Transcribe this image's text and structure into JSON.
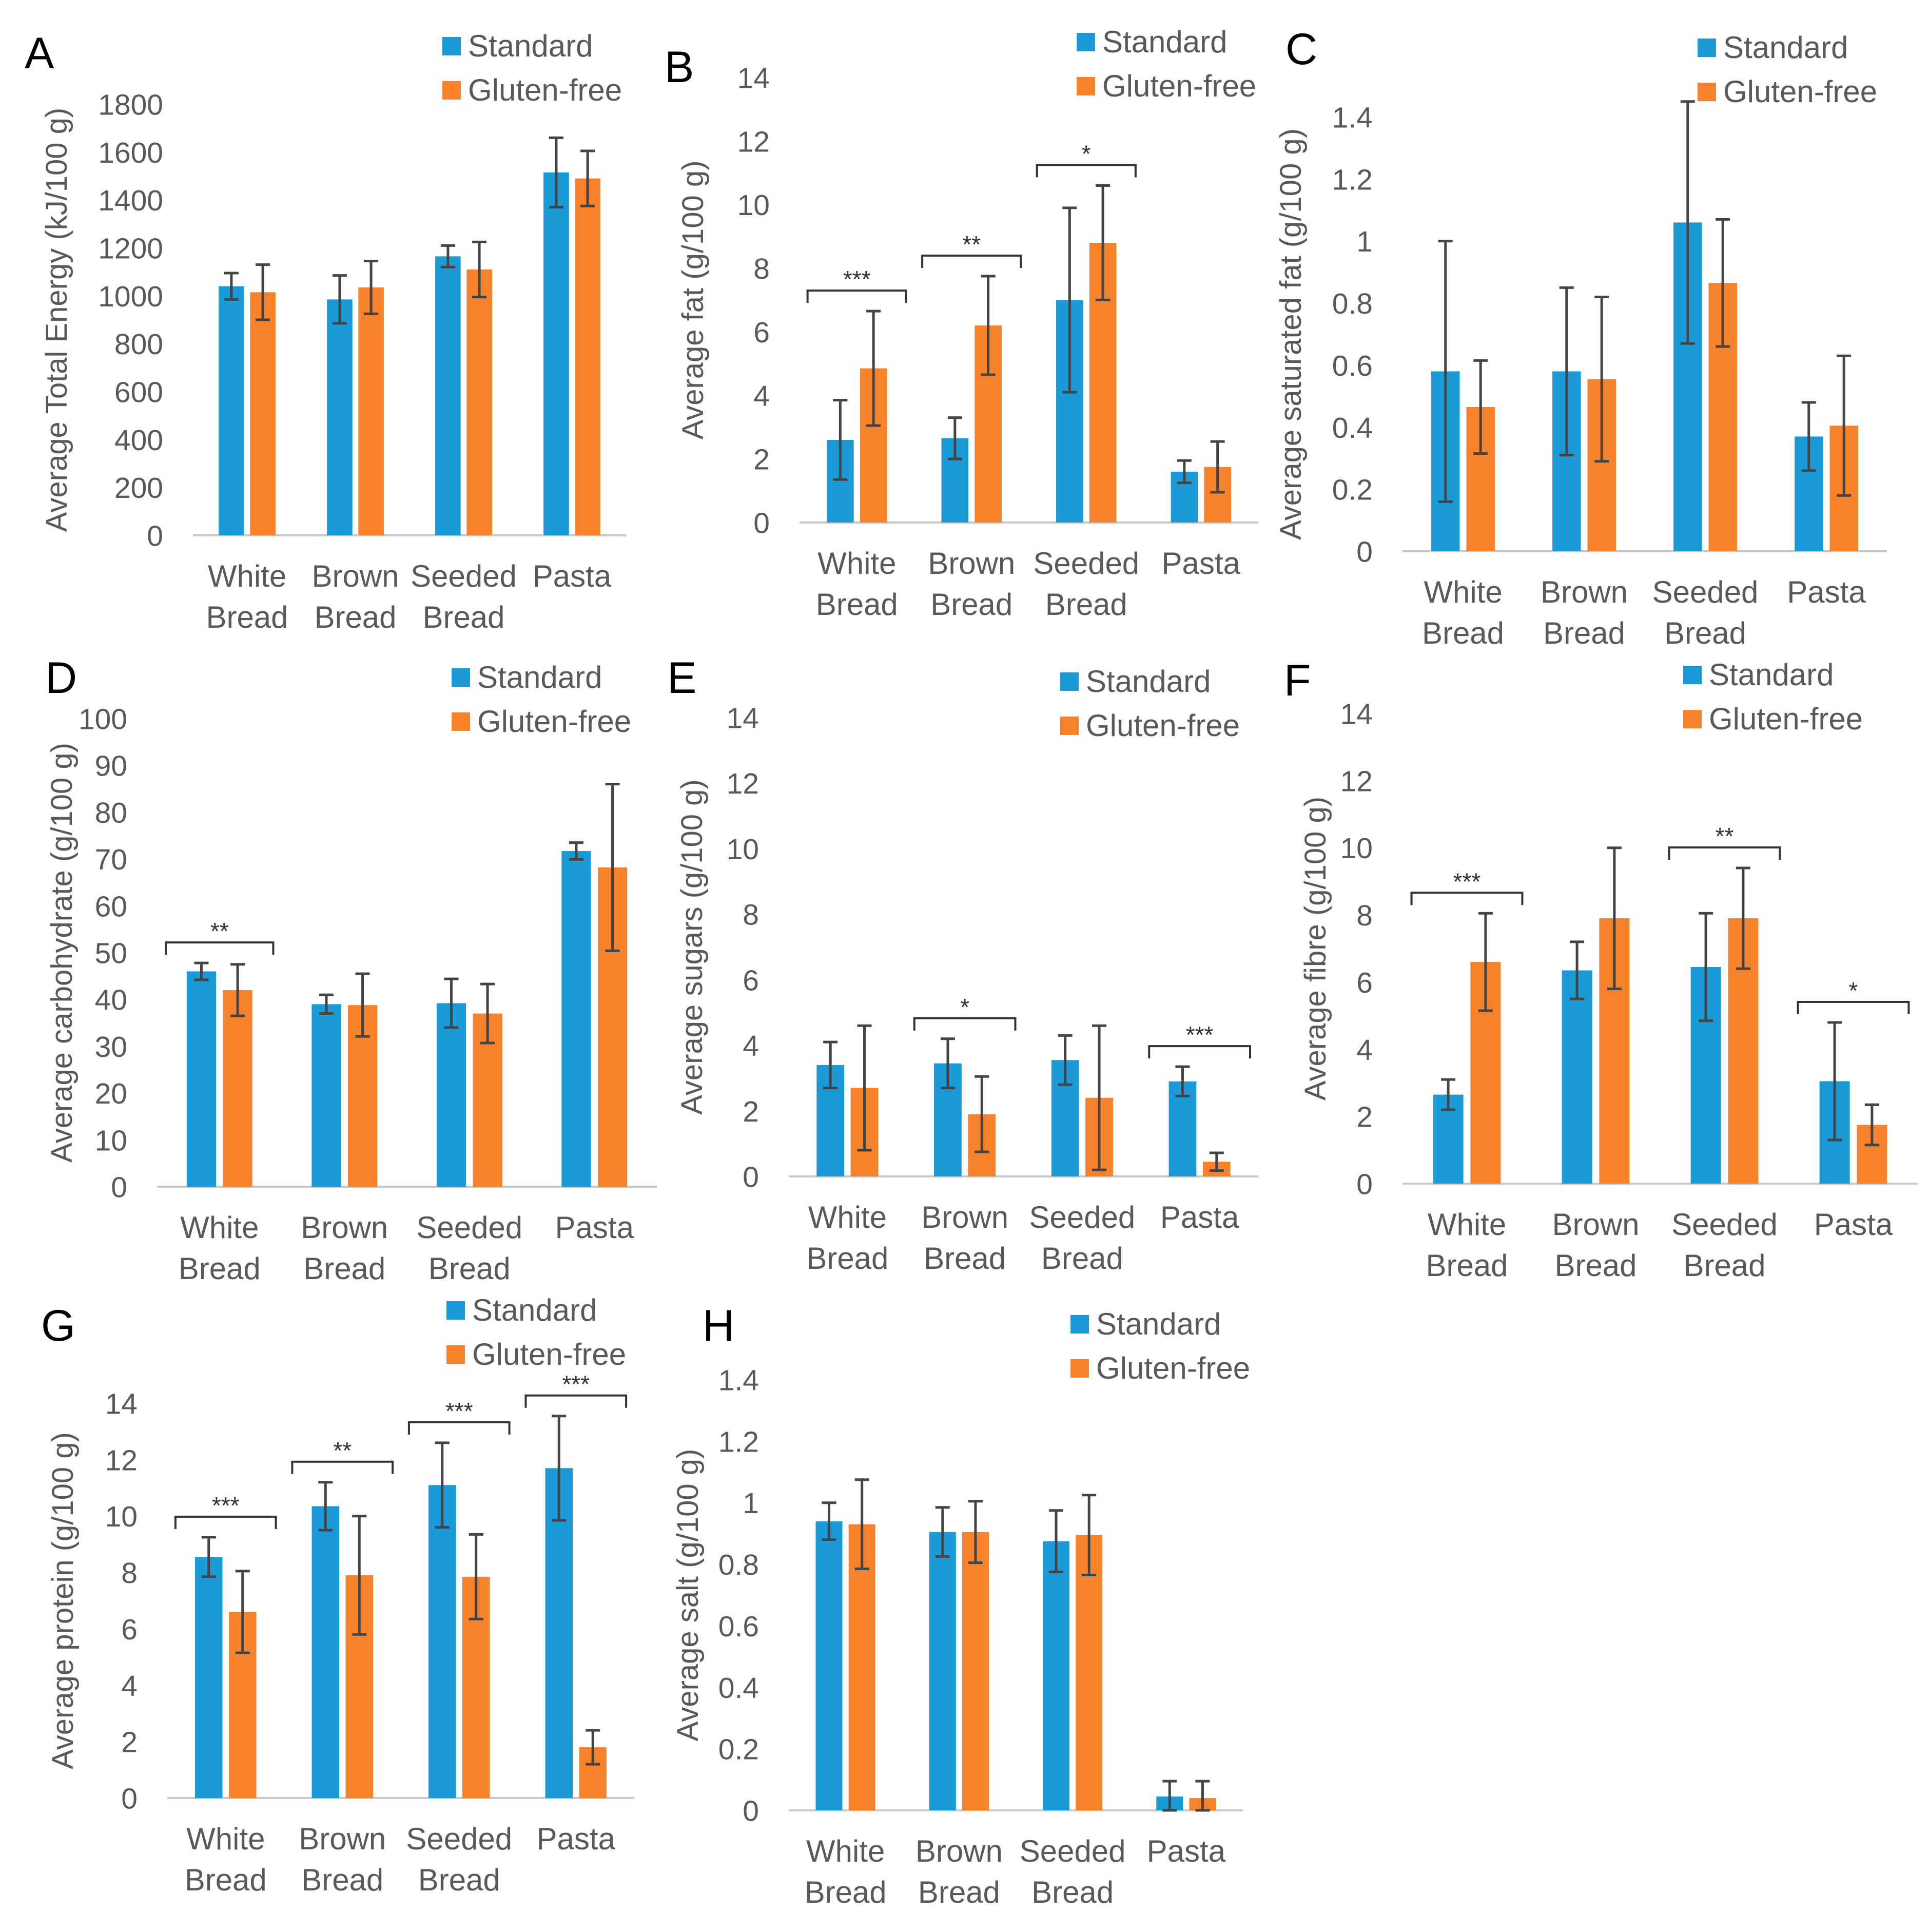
{
  "figure": {
    "colors": {
      "standard": "#1A9AD7",
      "gluten_free": "#F7822C",
      "axis": "#C8C8C8",
      "error": "#444444",
      "text": "#595959",
      "panel_label": "#000000"
    },
    "legend": [
      "Standard",
      "Gluten-free"
    ]
  },
  "chart_data": [
    {
      "panel": "A",
      "type": "bar",
      "title": "",
      "categories": [
        [
          "White",
          "Bread"
        ],
        [
          "Brown",
          "Bread"
        ],
        [
          "Seeded",
          "Bread"
        ],
        [
          "Pasta"
        ]
      ],
      "ylabel": "Average Total Energy (kJ/100 g)",
      "ylim": [
        0,
        1800
      ],
      "ytick_step": 200,
      "ytick_labels": [
        "0",
        "200",
        "400",
        "600",
        "800",
        "1000",
        "1200",
        "1400",
        "1600",
        "1800"
      ],
      "series": [
        {
          "name": "Standard",
          "values": [
            1040,
            985,
            1165,
            1515
          ],
          "errors": [
            55,
            100,
            45,
            145
          ]
        },
        {
          "name": "Gluten-free",
          "values": [
            1015,
            1035,
            1110,
            1490
          ],
          "errors": [
            115,
            110,
            115,
            115
          ]
        }
      ],
      "significance": []
    },
    {
      "panel": "B",
      "type": "bar",
      "title": "",
      "categories": [
        [
          "White",
          "Bread"
        ],
        [
          "Brown",
          "Bread"
        ],
        [
          "Seeded",
          "Bread"
        ],
        [
          "Pasta"
        ]
      ],
      "ylabel": "Average fat (g/100 g)",
      "ylim": [
        0,
        14
      ],
      "ytick_step": 2,
      "ytick_labels": [
        "0",
        "2",
        "4",
        "6",
        "8",
        "10",
        "12",
        "14"
      ],
      "series": [
        {
          "name": "Standard",
          "values": [
            2.6,
            2.65,
            7.0,
            1.6
          ],
          "errors": [
            1.25,
            0.65,
            2.9,
            0.35
          ]
        },
        {
          "name": "Gluten-free",
          "values": [
            4.85,
            6.2,
            8.8,
            1.75
          ],
          "errors": [
            1.8,
            1.55,
            1.8,
            0.8
          ]
        }
      ],
      "significance": [
        {
          "group": 0,
          "label": "***"
        },
        {
          "group": 1,
          "label": "**"
        },
        {
          "group": 2,
          "label": "*"
        }
      ]
    },
    {
      "panel": "C",
      "type": "bar",
      "title": "",
      "categories": [
        [
          "White",
          "Bread"
        ],
        [
          "Brown",
          "Bread"
        ],
        [
          "Seeded",
          "Bread"
        ],
        [
          "Pasta"
        ]
      ],
      "ylabel": "Average saturated fat (g/100 g)",
      "ylim": [
        0,
        1.4
      ],
      "ytick_step": 0.2,
      "ytick_labels": [
        "0",
        "0.2",
        "0.4",
        "0.6",
        "0.8",
        "1",
        "1.2",
        "1.4"
      ],
      "series": [
        {
          "name": "Standard",
          "values": [
            0.58,
            0.58,
            1.06,
            0.37
          ],
          "errors": [
            0.42,
            0.27,
            0.39,
            0.11
          ]
        },
        {
          "name": "Gluten-free",
          "values": [
            0.465,
            0.555,
            0.865,
            0.405
          ],
          "errors": [
            0.15,
            0.265,
            0.205,
            0.225
          ]
        }
      ],
      "significance": []
    },
    {
      "panel": "D",
      "type": "bar",
      "title": "",
      "categories": [
        [
          "White",
          "Bread"
        ],
        [
          "Brown",
          "Bread"
        ],
        [
          "Seeded",
          "Bread"
        ],
        [
          "Pasta"
        ]
      ],
      "ylabel": "Average carbohydrate (g/100 g)",
      "ylim": [
        0,
        100
      ],
      "ytick_step": 10,
      "ytick_labels": [
        "0",
        "10",
        "20",
        "30",
        "40",
        "50",
        "60",
        "70",
        "80",
        "90",
        "100"
      ],
      "series": [
        {
          "name": "Standard",
          "values": [
            46,
            39,
            39.2,
            71.7
          ],
          "errors": [
            1.8,
            2.0,
            5.2,
            1.8
          ]
        },
        {
          "name": "Gluten-free",
          "values": [
            42,
            38.8,
            37,
            68.2
          ],
          "errors": [
            5.5,
            6.7,
            6.3,
            17.8
          ]
        }
      ],
      "significance": [
        {
          "group": 0,
          "label": "**"
        }
      ]
    },
    {
      "panel": "E",
      "type": "bar",
      "title": "",
      "categories": [
        [
          "White",
          "Bread"
        ],
        [
          "Brown",
          "Bread"
        ],
        [
          "Seeded",
          "Bread"
        ],
        [
          "Pasta"
        ]
      ],
      "ylabel": "Average sugars (g/100 g)",
      "ylim": [
        0,
        14
      ],
      "ytick_step": 2,
      "ytick_labels": [
        "0",
        "2",
        "4",
        "6",
        "8",
        "10",
        "12",
        "14"
      ],
      "series": [
        {
          "name": "Standard",
          "values": [
            3.4,
            3.45,
            3.55,
            2.9
          ],
          "errors": [
            0.7,
            0.75,
            0.75,
            0.45
          ]
        },
        {
          "name": "Gluten-free",
          "values": [
            2.7,
            1.9,
            2.4,
            0.45
          ],
          "errors": [
            1.9,
            1.15,
            2.2,
            0.27
          ]
        }
      ],
      "significance": [
        {
          "group": 1,
          "label": "*"
        },
        {
          "group": 3,
          "label": "***"
        }
      ]
    },
    {
      "panel": "F",
      "type": "bar",
      "title": "",
      "categories": [
        [
          "White",
          "Bread"
        ],
        [
          "Brown",
          "Bread"
        ],
        [
          "Seeded",
          "Bread"
        ],
        [
          "Pasta"
        ]
      ],
      "ylabel": "Average fibre (g/100 g)",
      "ylim": [
        0,
        14
      ],
      "ytick_step": 2,
      "ytick_labels": [
        "0",
        "2",
        "4",
        "6",
        "8",
        "10",
        "12",
        "14"
      ],
      "series": [
        {
          "name": "Standard",
          "values": [
            2.65,
            6.35,
            6.45,
            3.05
          ],
          "errors": [
            0.45,
            0.85,
            1.6,
            1.75
          ]
        },
        {
          "name": "Gluten-free",
          "values": [
            6.6,
            7.9,
            7.9,
            1.75
          ],
          "errors": [
            1.45,
            2.1,
            1.5,
            0.6
          ]
        }
      ],
      "significance": [
        {
          "group": 0,
          "label": "***"
        },
        {
          "group": 2,
          "label": "**"
        },
        {
          "group": 3,
          "label": "*"
        }
      ]
    },
    {
      "panel": "G",
      "type": "bar",
      "title": "",
      "categories": [
        [
          "White",
          "Bread"
        ],
        [
          "Brown",
          "Bread"
        ],
        [
          "Seeded",
          "Bread"
        ],
        [
          "Pasta"
        ]
      ],
      "ylabel": "Average protein (g/100 g)",
      "ylim": [
        0,
        14
      ],
      "ytick_step": 2,
      "ytick_labels": [
        "0",
        "2",
        "4",
        "6",
        "8",
        "10",
        "12",
        "14"
      ],
      "series": [
        {
          "name": "Standard",
          "values": [
            8.55,
            10.35,
            11.1,
            11.7
          ],
          "errors": [
            0.7,
            0.85,
            1.5,
            1.85
          ]
        },
        {
          "name": "Gluten-free",
          "values": [
            6.6,
            7.9,
            7.85,
            1.8
          ],
          "errors": [
            1.45,
            2.1,
            1.5,
            0.6
          ]
        }
      ],
      "significance": [
        {
          "group": 0,
          "label": "***"
        },
        {
          "group": 1,
          "label": "**"
        },
        {
          "group": 2,
          "label": "***"
        },
        {
          "group": 3,
          "label": "***"
        }
      ]
    },
    {
      "panel": "H",
      "type": "bar",
      "title": "",
      "categories": [
        [
          "White",
          "Bread"
        ],
        [
          "Brown",
          "Bread"
        ],
        [
          "Seeded",
          "Bread"
        ],
        [
          "Pasta"
        ]
      ],
      "ylabel": "Average salt (g/100 g)",
      "ylim": [
        0,
        1.4
      ],
      "ytick_step": 0.2,
      "ytick_labels": [
        "0",
        "0.2",
        "0.4",
        "0.6",
        "0.8",
        "1",
        "1.2",
        "1.4"
      ],
      "series": [
        {
          "name": "Standard",
          "values": [
            0.94,
            0.905,
            0.875,
            0.045
          ],
          "errors": [
            0.06,
            0.08,
            0.1,
            0.05
          ]
        },
        {
          "name": "Gluten-free",
          "values": [
            0.93,
            0.905,
            0.895,
            0.04
          ],
          "errors": [
            0.145,
            0.1,
            0.13,
            0.055
          ]
        }
      ],
      "significance": []
    }
  ]
}
